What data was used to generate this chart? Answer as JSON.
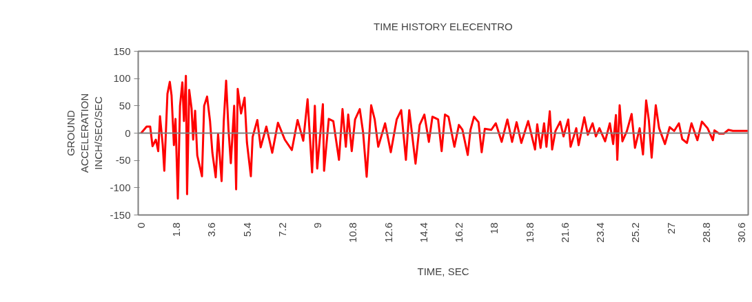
{
  "chart_data": {
    "type": "line",
    "title": "TIME HISTORY ELECENTRO",
    "xlabel": "TIME, SEC",
    "ylabel": "GROUND\nACCELERATION\nINCH/SEC/SEC",
    "series": [
      {
        "color": "#ff0000",
        "x": [
          0,
          0.28,
          0.46,
          0.58,
          0.75,
          0.87,
          0.96,
          1.1,
          1.18,
          1.34,
          1.46,
          1.55,
          1.67,
          1.75,
          1.87,
          1.98,
          2.1,
          2.18,
          2.28,
          2.34,
          2.45,
          2.57,
          2.65,
          2.75,
          2.86,
          3.1,
          3.21,
          3.36,
          3.51,
          3.63,
          3.8,
          3.92,
          4.1,
          4.21,
          4.33,
          4.45,
          4.57,
          4.74,
          4.84,
          4.92,
          5.09,
          5.27,
          5.39,
          5.59,
          5.68,
          5.92,
          6.09,
          6.38,
          6.68,
          6.97,
          7.32,
          7.68,
          7.97,
          8.26,
          8.48,
          8.71,
          8.85,
          8.97,
          9.26,
          9.32,
          9.56,
          9.79,
          10.08,
          10.26,
          10.43,
          10.55,
          10.73,
          10.9,
          11.14,
          11.31,
          11.49,
          11.72,
          11.9,
          12.08,
          12.43,
          12.72,
          13.02,
          13.25,
          13.49,
          13.66,
          13.98,
          14.19,
          14.43,
          14.66,
          14.84,
          15.13,
          15.31,
          15.48,
          15.66,
          15.96,
          16.19,
          16.37,
          16.64,
          16.78,
          16.96,
          17.19,
          17.35,
          17.51,
          17.84,
          18.07,
          18.37,
          18.66,
          18.9,
          19.13,
          19.37,
          19.72,
          20.07,
          20.18,
          20.35,
          20.53,
          20.65,
          20.82,
          20.94,
          21.11,
          21.35,
          21.52,
          21.76,
          21.88,
          22.17,
          22.29,
          22.58,
          22.76,
          23.0,
          23.17,
          23.35,
          23.64,
          23.88,
          24.05,
          24.19,
          24.26,
          24.38,
          24.52,
          24.75,
          24.99,
          25.16,
          25.4,
          25.57,
          25.73,
          25.87,
          26.01,
          26.22,
          26.39,
          26.69,
          26.93,
          27.16,
          27.4,
          27.57,
          27.81,
          28.04,
          28.34,
          28.57,
          28.86,
          29.13,
          29.21,
          29.45,
          29.68,
          29.92,
          30.15,
          30.9
        ],
        "values": [
          0,
          12,
          12,
          -24,
          -12,
          -33,
          31,
          -22,
          -69,
          72,
          94,
          69,
          -22,
          26,
          -120,
          50,
          93,
          22,
          105,
          -112,
          79,
          45,
          -12,
          41,
          -41,
          -79,
          50,
          67,
          22,
          -36,
          -81,
          -2,
          -88,
          22,
          96,
          7,
          -55,
          50,
          -103,
          81,
          36,
          65,
          -17,
          -79,
          -7,
          24,
          -26,
          12,
          -36,
          19,
          -12,
          -31,
          24,
          -14,
          62,
          -72,
          50,
          -65,
          53,
          -69,
          26,
          22,
          -49,
          44,
          -25,
          34,
          -33,
          25,
          44,
          1,
          -80,
          51,
          25,
          -25,
          18,
          -35,
          25,
          42,
          -49,
          42,
          -56,
          15,
          34,
          -16,
          30,
          25,
          -33,
          34,
          30,
          -25,
          15,
          6,
          -40,
          6,
          30,
          20,
          -35,
          8,
          6,
          18,
          -16,
          25,
          -16,
          20,
          -18,
          22,
          -30,
          16,
          -27,
          18,
          -25,
          40,
          -30,
          4,
          21,
          -6,
          25,
          -25,
          9,
          -22,
          29,
          -3,
          18,
          -6,
          9,
          -15,
          18,
          -20,
          33,
          -49,
          51,
          -15,
          4,
          35,
          -27,
          9,
          -39,
          60,
          23,
          -45,
          51,
          9,
          -20,
          11,
          4,
          18,
          -11,
          -18,
          18,
          -13,
          21,
          9,
          -13,
          5,
          -1,
          -1,
          6,
          4,
          4
        ]
      }
    ],
    "xlim": [
      -0.15,
      30.93
    ],
    "xticks": [
      0,
      1.8,
      3.6,
      5.4,
      7.2,
      9,
      10.8,
      12.6,
      14.4,
      16.2,
      18,
      19.8,
      21.6,
      23.4,
      25.2,
      27,
      28.8,
      30.6
    ],
    "ylim": [
      -150,
      150
    ],
    "yticks": [
      -150,
      -100,
      -50,
      0,
      50,
      100,
      150
    ],
    "ref_lines": [
      {
        "axis": "y",
        "value": 0,
        "color": "#808080"
      }
    ],
    "grid": false,
    "marker": "none",
    "line_style": "solid"
  }
}
